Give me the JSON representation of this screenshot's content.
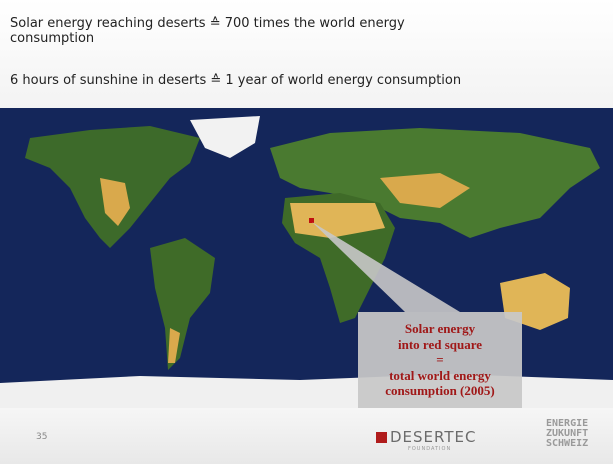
{
  "slide": {
    "lines": [
      "Solar energy reaching deserts ≙ 700 times the world energy consumption",
      "6 hours of sunshine in deserts ≙ 1 year of world energy consumption"
    ],
    "callout": [
      "Solar energy",
      "into red square",
      "=",
      "total world energy",
      "consumption (2005)"
    ],
    "page_number": "35",
    "logos": {
      "desertec": "DESERTEC",
      "desertec_sub": "FOUNDATION",
      "ezs": [
        "ENERGIE",
        "ZUKUNFT",
        "SCHWEIZ"
      ]
    }
  }
}
